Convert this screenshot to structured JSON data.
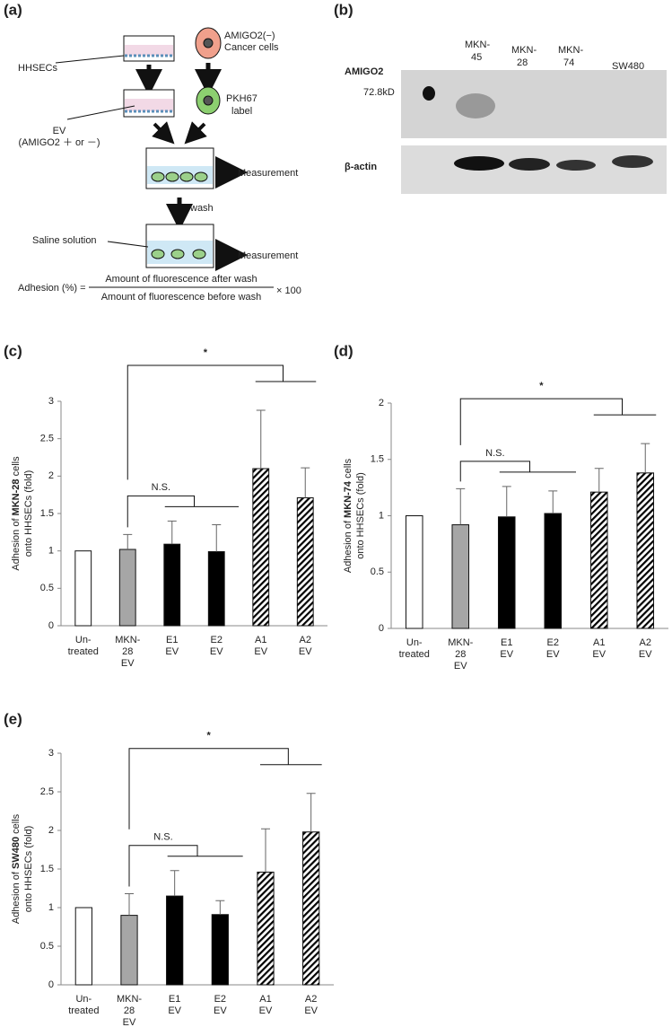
{
  "panel_labels": [
    "(a)",
    "(b)",
    "(c)",
    "(d)",
    "(e)"
  ],
  "diagram": {
    "hhsecs": "HHSECs",
    "cells": [
      "AMIGO2(−)",
      "Cancer cells"
    ],
    "label": [
      "PKH67",
      "label"
    ],
    "ev": [
      "EV",
      "(AMIGO2 ＋ or －)"
    ],
    "measurement_1": "Measurement",
    "wash": "wash",
    "saline": "Saline solution",
    "measurement_2": "Measurement",
    "formula": {
      "lhs": "Adhesion (%) =",
      "numerator": "Amount of fluorescence after wash",
      "denominator": "Amount of fluorescence before wash",
      "factor": "× 100"
    }
  },
  "blot": {
    "lanes": [
      [
        "MKN-",
        "45"
      ],
      [
        "MKN-",
        "28"
      ],
      [
        "MKN-",
        "74"
      ],
      [
        "SW480"
      ]
    ],
    "rows": [
      "AMIGO2",
      "β-actin"
    ],
    "marker": "72.8kD"
  },
  "chart_data": [
    {
      "type": "bar",
      "ylabel": [
        "Adhesion of ",
        "MKN-28",
        " cells",
        "onto HHSECs (fold)"
      ],
      "categories": [
        [
          "Un-",
          "treated"
        ],
        [
          "MKN-",
          "28",
          "EV"
        ],
        [
          "E1",
          "EV"
        ],
        [
          "E2",
          "EV"
        ],
        [
          "A1",
          "EV"
        ],
        [
          "A2",
          "EV"
        ]
      ],
      "values": [
        1.0,
        1.02,
        1.09,
        0.99,
        2.1,
        1.71
      ],
      "errors": [
        null,
        0.2,
        0.31,
        0.36,
        0.78,
        0.4
      ],
      "fills": [
        "white",
        "#a6a6a6",
        "black",
        "black",
        "hatched",
        "hatched"
      ],
      "ylim": [
        0,
        3
      ],
      "yticks": [
        0,
        0.5,
        1,
        1.5,
        2,
        2.5,
        3
      ],
      "annotations": {
        "significant": "*",
        "not_significant": "N.S."
      }
    },
    {
      "type": "bar",
      "ylabel": [
        "Adhesion of ",
        "MKN-74",
        " cells",
        "onto HHSECs (fold)"
      ],
      "categories": [
        [
          "Un-",
          "treated"
        ],
        [
          "MKN-",
          "28",
          "EV"
        ],
        [
          "E1",
          "EV"
        ],
        [
          "E2",
          "EV"
        ],
        [
          "A1",
          "EV"
        ],
        [
          "A2",
          "EV"
        ]
      ],
      "values": [
        1.0,
        0.92,
        0.99,
        1.02,
        1.21,
        1.38
      ],
      "errors": [
        null,
        0.32,
        0.27,
        0.2,
        0.21,
        0.26
      ],
      "fills": [
        "white",
        "#a6a6a6",
        "black",
        "black",
        "hatched",
        "hatched"
      ],
      "ylim": [
        0,
        2
      ],
      "yticks": [
        0,
        0.5,
        1,
        1.5,
        2
      ],
      "annotations": {
        "significant": "*",
        "not_significant": "N.S."
      }
    },
    {
      "type": "bar",
      "ylabel": [
        "Adhesion of ",
        "SW480",
        " cells",
        "onto HHSECs (fold)"
      ],
      "categories": [
        [
          "Un-",
          "treated"
        ],
        [
          "MKN-",
          "28",
          "EV"
        ],
        [
          "E1",
          "EV"
        ],
        [
          "E2",
          "EV"
        ],
        [
          "A1",
          "EV"
        ],
        [
          "A2",
          "EV"
        ]
      ],
      "values": [
        1.0,
        0.9,
        1.15,
        0.91,
        1.46,
        1.98
      ],
      "errors": [
        null,
        0.28,
        0.33,
        0.18,
        0.56,
        0.5
      ],
      "fills": [
        "white",
        "#a6a6a6",
        "black",
        "black",
        "hatched",
        "hatched"
      ],
      "ylim": [
        0,
        3
      ],
      "yticks": [
        0,
        0.5,
        1,
        1.5,
        2,
        2.5,
        3
      ],
      "annotations": {
        "significant": "*",
        "not_significant": "N.S."
      }
    }
  ]
}
